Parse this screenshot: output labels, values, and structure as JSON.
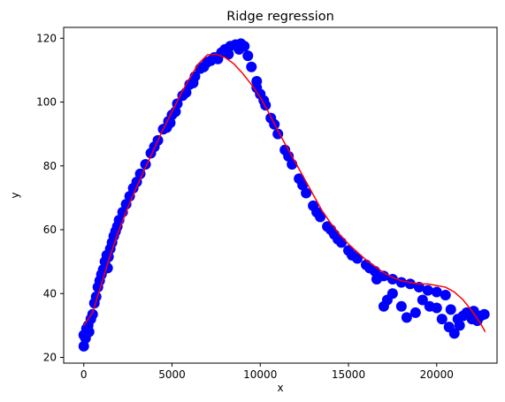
{
  "chart_data": {
    "type": "scatter",
    "title": "Ridge regression",
    "xlabel": "x",
    "ylabel": "y",
    "xlim": [
      -1140,
      23420
    ],
    "ylim": [
      18.2,
      123.4
    ],
    "xticks": [
      0,
      5000,
      10000,
      15000,
      20000
    ],
    "yticks": [
      20,
      40,
      60,
      80,
      100,
      120
    ],
    "grid": false,
    "colors": {
      "points": "#0000ff",
      "fit": "#ff0000"
    },
    "series": [
      {
        "kind": "scatter",
        "color": "#0000ff",
        "points": [
          [
            0,
            23.5
          ],
          [
            0,
            27
          ],
          [
            100,
            26
          ],
          [
            150,
            29
          ],
          [
            250,
            30
          ],
          [
            300,
            28
          ],
          [
            400,
            32
          ],
          [
            500,
            33.5
          ],
          [
            600,
            37
          ],
          [
            700,
            39
          ],
          [
            800,
            42
          ],
          [
            900,
            44
          ],
          [
            1000,
            46
          ],
          [
            1100,
            47.5
          ],
          [
            1200,
            50
          ],
          [
            1300,
            52
          ],
          [
            1350,
            48
          ],
          [
            1400,
            51.5
          ],
          [
            1500,
            54
          ],
          [
            1600,
            56
          ],
          [
            1700,
            58
          ],
          [
            1800,
            59.5
          ],
          [
            1900,
            61
          ],
          [
            2000,
            63
          ],
          [
            2200,
            65.5
          ],
          [
            2400,
            68
          ],
          [
            2600,
            70.5
          ],
          [
            2800,
            73
          ],
          [
            3000,
            75
          ],
          [
            3200,
            77.5
          ],
          [
            3500,
            80.5
          ],
          [
            3800,
            84
          ],
          [
            4000,
            86
          ],
          [
            4200,
            88
          ],
          [
            4500,
            91.5
          ],
          [
            4800,
            94
          ],
          [
            5000,
            96
          ],
          [
            5300,
            99.5
          ],
          [
            5600,
            102
          ],
          [
            6000,
            105.5
          ],
          [
            6300,
            108
          ],
          [
            6600,
            110.5
          ],
          [
            7000,
            112.5
          ],
          [
            7400,
            114
          ],
          [
            7800,
            115.5
          ],
          [
            8000,
            116.5
          ],
          [
            8300,
            117.5
          ],
          [
            8600,
            118
          ],
          [
            8900,
            118.3
          ],
          [
            9100,
            117.5
          ],
          [
            9300,
            114.5
          ],
          [
            9500,
            111
          ],
          [
            9800,
            106.5
          ],
          [
            10000,
            102.5
          ],
          [
            10300,
            99
          ],
          [
            10600,
            95
          ],
          [
            11000,
            90
          ],
          [
            11400,
            85
          ],
          [
            11800,
            80.5
          ],
          [
            12200,
            76
          ],
          [
            12600,
            71.5
          ],
          [
            13000,
            67.5
          ],
          [
            13400,
            64
          ],
          [
            13800,
            61
          ],
          [
            14200,
            58.5
          ],
          [
            14600,
            56
          ],
          [
            15000,
            53.5
          ],
          [
            15500,
            51
          ],
          [
            16000,
            49
          ],
          [
            16500,
            47
          ],
          [
            17000,
            45.5
          ],
          [
            17500,
            44.5
          ],
          [
            18000,
            43.5
          ],
          [
            18500,
            43
          ],
          [
            19000,
            42
          ],
          [
            19500,
            41
          ],
          [
            20000,
            40.5
          ],
          [
            20500,
            39.5
          ],
          [
            20800,
            35
          ],
          [
            21000,
            27.5
          ],
          [
            21200,
            32
          ],
          [
            21500,
            33
          ],
          [
            22000,
            32
          ],
          [
            22300,
            31.5
          ],
          [
            22700,
            33.5
          ],
          [
            9800,
            104.5
          ],
          [
            10200,
            100.5
          ],
          [
            10800,
            93
          ],
          [
            11600,
            83
          ],
          [
            12400,
            74
          ],
          [
            13200,
            65.5
          ],
          [
            14000,
            60
          ],
          [
            14400,
            57
          ],
          [
            15200,
            52
          ],
          [
            16200,
            48
          ],
          [
            16600,
            44.5
          ],
          [
            17000,
            36
          ],
          [
            17200,
            38
          ],
          [
            17500,
            40
          ],
          [
            18000,
            36
          ],
          [
            18300,
            32.5
          ],
          [
            18800,
            34
          ],
          [
            19200,
            38
          ],
          [
            19600,
            36
          ],
          [
            20000,
            35.5
          ],
          [
            20300,
            32
          ],
          [
            20700,
            29.5
          ],
          [
            21300,
            30
          ],
          [
            21700,
            34
          ],
          [
            22100,
            34.5
          ],
          [
            22500,
            33
          ],
          [
            4700,
            92
          ],
          [
            4900,
            93.5
          ],
          [
            5200,
            97
          ],
          [
            5800,
            103
          ],
          [
            6200,
            106
          ],
          [
            6800,
            111
          ],
          [
            7200,
            113
          ],
          [
            7600,
            113.5
          ],
          [
            8200,
            115
          ],
          [
            8800,
            116.5
          ]
        ]
      },
      {
        "kind": "line",
        "color": "#ff0000",
        "points": [
          [
            0,
            30
          ],
          [
            500,
            34
          ],
          [
            1000,
            43
          ],
          [
            1500,
            52
          ],
          [
            2000,
            60
          ],
          [
            2500,
            67
          ],
          [
            3000,
            73.5
          ],
          [
            3500,
            79.5
          ],
          [
            4000,
            85.5
          ],
          [
            4500,
            91.5
          ],
          [
            5000,
            97
          ],
          [
            5500,
            102.5
          ],
          [
            6000,
            107.5
          ],
          [
            6500,
            112
          ],
          [
            7000,
            114.8
          ],
          [
            7500,
            115
          ],
          [
            8000,
            114
          ],
          [
            8500,
            112
          ],
          [
            9000,
            109
          ],
          [
            9500,
            105.5
          ],
          [
            10000,
            101.5
          ],
          [
            10500,
            96.5
          ],
          [
            11000,
            91
          ],
          [
            11500,
            86
          ],
          [
            12000,
            81
          ],
          [
            12500,
            76
          ],
          [
            13000,
            71
          ],
          [
            13500,
            66
          ],
          [
            14000,
            62
          ],
          [
            14500,
            58.5
          ],
          [
            15000,
            55.5
          ],
          [
            15500,
            53
          ],
          [
            16000,
            50.5
          ],
          [
            16500,
            48.5
          ],
          [
            17000,
            46.5
          ],
          [
            17500,
            45
          ],
          [
            18000,
            44
          ],
          [
            18500,
            43.5
          ],
          [
            19000,
            43
          ],
          [
            19500,
            43
          ],
          [
            20000,
            42.5
          ],
          [
            20500,
            42
          ],
          [
            21000,
            40.5
          ],
          [
            21500,
            38
          ],
          [
            22000,
            34.5
          ],
          [
            22500,
            30.5
          ],
          [
            22750,
            28
          ]
        ]
      }
    ]
  }
}
